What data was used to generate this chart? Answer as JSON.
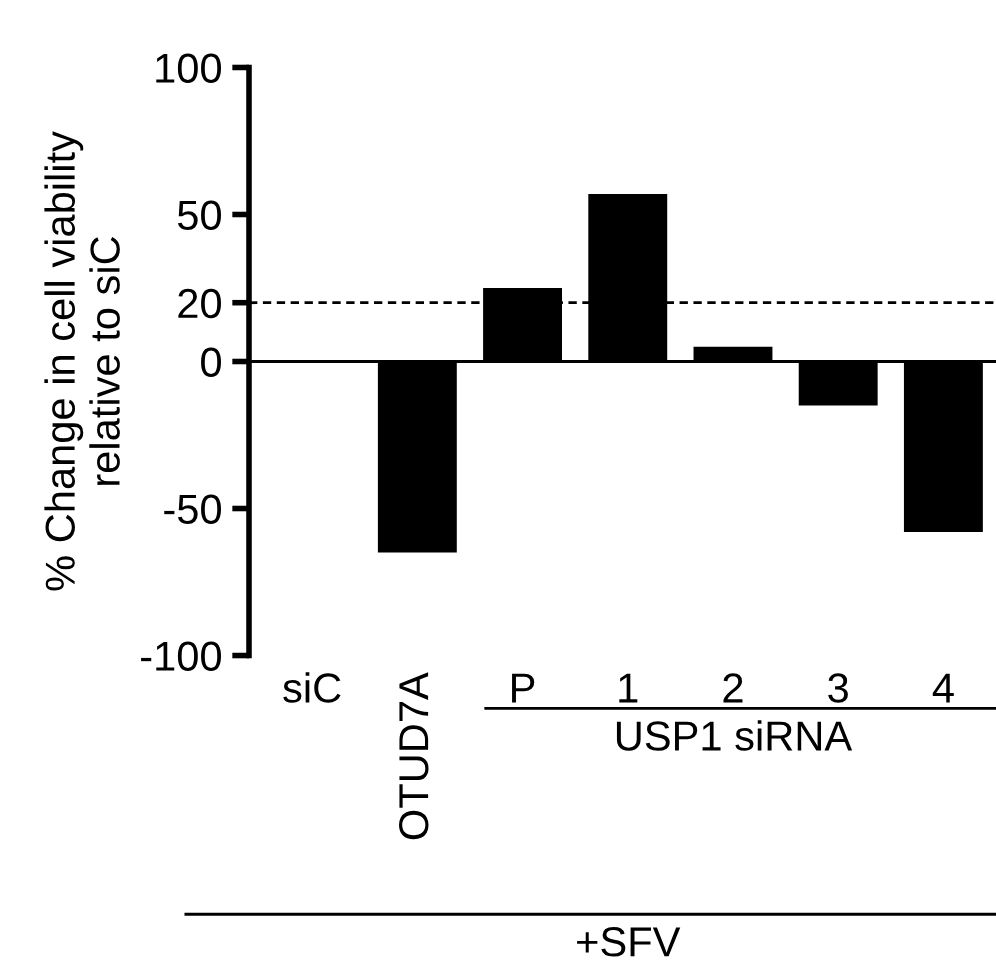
{
  "chart_data": {
    "type": "bar",
    "ylabel": "% Change in cell viability\nrelative to siC",
    "categories": [
      "siC",
      "OTUD7A",
      "P",
      "1",
      "2",
      "3",
      "4"
    ],
    "values": [
      0,
      -65,
      25,
      57,
      5,
      -15,
      -58
    ],
    "color": "#000000",
    "ylim": [
      -100,
      100
    ],
    "yticks": [
      -100,
      -50,
      0,
      20,
      50,
      100
    ],
    "grid": false,
    "ref_lines": [
      {
        "axis": "y",
        "value": 20,
        "line_style": "dashed",
        "color": "#000000"
      },
      {
        "axis": "y",
        "value": 0,
        "line_style": "solid",
        "color": "#000000"
      }
    ],
    "annotations": [
      "USP1 siRNA",
      "+SFV"
    ]
  }
}
